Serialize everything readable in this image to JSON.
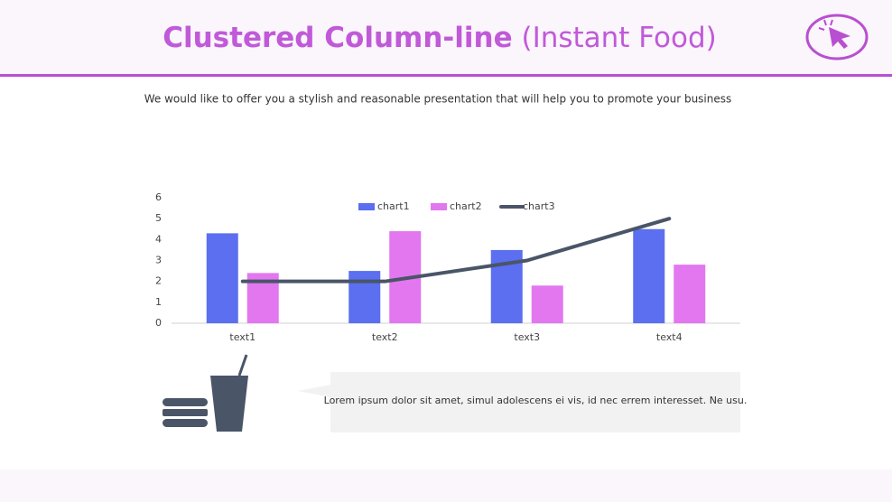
{
  "header": {
    "title": "Clustered Column-line",
    "title_suffix": "(Instant Food)",
    "subtitle": "We would like to offer you a stylish and reasonable presentation that will help you to promote your business"
  },
  "chart_data": {
    "type": "bar-line",
    "categories": [
      "text1",
      "text2",
      "text3",
      "text4"
    ],
    "series": [
      {
        "name": "chart1",
        "type": "bar",
        "color": "#5b6ff0",
        "values": [
          4.3,
          2.5,
          3.5,
          4.5
        ]
      },
      {
        "name": "chart2",
        "type": "bar",
        "color": "#e277f0",
        "values": [
          2.4,
          4.4,
          1.8,
          2.8
        ]
      },
      {
        "name": "chart3",
        "type": "line",
        "color": "#4a5568",
        "values": [
          2,
          2,
          3,
          5
        ]
      }
    ],
    "ylim": [
      0,
      6
    ],
    "yticks": [
      0,
      1,
      2,
      3,
      4,
      5,
      6
    ],
    "grid": false,
    "legend": "top"
  },
  "callout": {
    "text": "Lorem ipsum dolor sit amet, simul adolescens ei vis, id nec errem interesset. Ne usu."
  }
}
